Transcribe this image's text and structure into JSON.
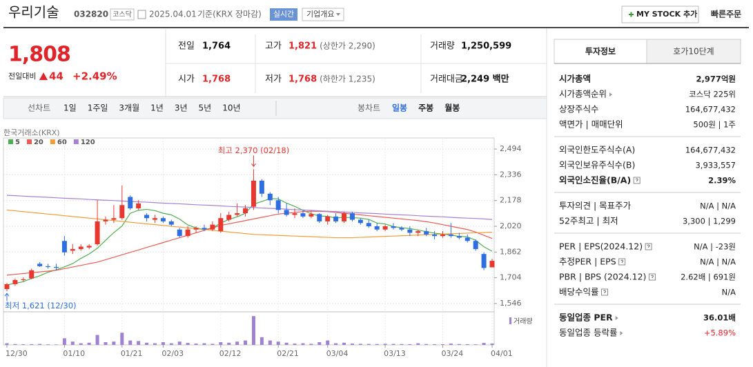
{
  "header": {
    "name": "우리기술",
    "code": "032820",
    "market": "코스닥",
    "date": "2025.04.01",
    "basis": "기준(KRX 장마감)",
    "realtime": "실시간",
    "overview": "기업개요",
    "my_stock": "MY STOCK 추가",
    "quick_order": "빠른주문"
  },
  "quote": {
    "price": "1,808",
    "change_label": "전일대비",
    "change": "44",
    "change_rate": "+2.49%",
    "color": "#e0242a",
    "items": [
      {
        "label": "전일",
        "value": "1,764",
        "color": "#111111"
      },
      {
        "label": "고가",
        "value": "1,821",
        "note": "(상한가 2,290)",
        "color": "#e0242a"
      },
      {
        "label": "거래량",
        "value": "1,250,599",
        "color": "#111111"
      },
      {
        "label": "시가",
        "value": "1,768",
        "color": "#e0242a"
      },
      {
        "label": "저가",
        "value": "1,768",
        "note": "(하한가 1,235)",
        "color": "#e0242a"
      },
      {
        "label": "거래대금",
        "value": "2,249 백만",
        "color": "#111111"
      }
    ]
  },
  "periods": {
    "line_label": "선차트",
    "line": [
      "1일",
      "1주일",
      "3개월",
      "1년",
      "3년",
      "5년",
      "10년"
    ],
    "candle_label": "봉차트",
    "candle": [
      "일봉",
      "주봉",
      "월봉"
    ],
    "selected": 0
  },
  "chart_data": {
    "type": "candlestick",
    "source": "한국거래소(KRX)",
    "up_color": "#e8372f",
    "down_color": "#2f6ee0",
    "categories": [
      "12/30",
      null,
      null,
      null,
      null,
      null,
      null,
      "01/10",
      null,
      null,
      null,
      null,
      null,
      null,
      "01/21",
      null,
      null,
      null,
      null,
      "02/03",
      null,
      null,
      null,
      null,
      null,
      null,
      "02/12",
      null,
      null,
      null,
      null,
      null,
      null,
      "02/21",
      null,
      null,
      null,
      null,
      null,
      "03/04",
      null,
      null,
      null,
      null,
      null,
      null,
      "03/13",
      null,
      null,
      null,
      null,
      null,
      null,
      "03/24",
      null,
      null,
      null,
      null,
      null,
      "04/01"
    ],
    "open": [
      1635,
      1665,
      1690,
      1700,
      1790,
      1775,
      1770,
      1930,
      1870,
      1880,
      1890,
      1910,
      2050,
      2060,
      2070,
      2200,
      2130,
      2090,
      2060,
      2070,
      2050,
      2000,
      1960,
      2000,
      2010,
      2000,
      1990,
      2060,
      2090,
      2100,
      2140,
      2300,
      2220,
      2180,
      2120,
      2090,
      2100,
      2080,
      2095,
      2050,
      2080,
      2050,
      2100,
      2060,
      2040,
      2020,
      2000,
      2020,
      2010,
      2000,
      1980,
      1990,
      1970,
      1960,
      1970,
      1960,
      1950,
      1930,
      1850,
      1768
    ],
    "high": [
      1672,
      1700,
      1705,
      1760,
      1800,
      1790,
      1790,
      1960,
      1910,
      1910,
      1910,
      2180,
      2080,
      2150,
      2270,
      2210,
      2180,
      2100,
      2090,
      2080,
      2060,
      2010,
      2020,
      2020,
      2030,
      2050,
      2100,
      2110,
      2160,
      2150,
      2370,
      2310,
      2230,
      2200,
      2160,
      2130,
      2120,
      2110,
      2100,
      2090,
      2100,
      2110,
      2110,
      2070,
      2060,
      2040,
      2030,
      2040,
      2020,
      2020,
      2000,
      2010,
      1990,
      1990,
      2040,
      1980,
      1970,
      1940,
      1860,
      1821
    ],
    "low": [
      1621,
      1655,
      1680,
      1695,
      1770,
      1760,
      1750,
      1840,
      1850,
      1870,
      1880,
      1900,
      2030,
      2040,
      2060,
      2120,
      2120,
      2050,
      2040,
      2040,
      2020,
      1950,
      1950,
      1980,
      1990,
      1990,
      1980,
      2050,
      2080,
      2080,
      2120,
      2200,
      2150,
      2100,
      2080,
      2070,
      2070,
      2070,
      2040,
      2030,
      2040,
      2040,
      2050,
      2030,
      2010,
      1990,
      1990,
      2000,
      1990,
      1960,
      1960,
      1960,
      1940,
      1950,
      1950,
      1940,
      1920,
      1870,
      1750,
      1768
    ],
    "close": [
      1665,
      1690,
      1695,
      1750,
      1775,
      1770,
      1765,
      1860,
      1880,
      1895,
      1900,
      2050,
      2060,
      2070,
      2150,
      2130,
      2160,
      2070,
      2070,
      2050,
      2030,
      1960,
      2000,
      2010,
      2000,
      2030,
      2070,
      2090,
      2100,
      2130,
      2300,
      2220,
      2180,
      2120,
      2090,
      2100,
      2080,
      2095,
      2050,
      2080,
      2050,
      2100,
      2060,
      2040,
      2020,
      2000,
      2020,
      2010,
      2000,
      1980,
      1990,
      1970,
      1960,
      1970,
      1960,
      1950,
      1930,
      1880,
      1764,
      1808
    ],
    "ylim": [
      1512,
      2562
    ],
    "yticks": [
      {
        "value": 2494,
        "label": "2,494"
      },
      {
        "value": 2336,
        "label": "2,336"
      },
      {
        "value": 2178,
        "label": "2,178"
      },
      {
        "value": 2020,
        "label": "2,020"
      },
      {
        "value": 1862,
        "label": "1,862"
      },
      {
        "value": 1704,
        "label": "1,704"
      },
      {
        "value": 1546,
        "label": "1,546"
      }
    ],
    "ma": [
      {
        "name": "5",
        "color": "#4caf50",
        "values": [
          1660,
          1670,
          1680,
          1700,
          1716,
          1738,
          1753,
          1771,
          1791,
          1823,
          1850,
          1885,
          1934,
          1981,
          2022,
          2100,
          2118,
          2124,
          2116,
          2100,
          2090,
          2064,
          2028,
          2010,
          2000,
          2009,
          2040,
          2062,
          2078,
          2100,
          2156,
          2172,
          2190,
          2188,
          2162,
          2142,
          2118,
          2097,
          2083,
          2081,
          2071,
          2075,
          2073,
          2070,
          2062,
          2040,
          2034,
          2018,
          2011,
          2006,
          1997,
          1987,
          1978,
          1972,
          1966,
          1958,
          1955,
          1934,
          1894,
          1867
        ]
      },
      {
        "name": "20",
        "color": "#ec5a52",
        "values": [
          1720,
          1725,
          1730,
          1735,
          1740,
          1745,
          1750,
          1760,
          1770,
          1780,
          1790,
          1800,
          1815,
          1830,
          1845,
          1860,
          1875,
          1890,
          1905,
          1920,
          1935,
          1950,
          1965,
          1980,
          1995,
          2010,
          2025,
          2035,
          2045,
          2055,
          2065,
          2075,
          2085,
          2095,
          2100,
          2105,
          2110,
          2112,
          2112,
          2110,
          2105,
          2100,
          2095,
          2090,
          2085,
          2080,
          2075,
          2070,
          2065,
          2060,
          2055,
          2048,
          2040,
          2030,
          2020,
          2010,
          2000,
          1985,
          1965,
          1945
        ]
      },
      {
        "name": "60",
        "color": "#f39c3a",
        "values": [
          2120,
          2115,
          2110,
          2105,
          2100,
          2095,
          2090,
          2085,
          2080,
          2075,
          2070,
          2065,
          2060,
          2055,
          2050,
          2045,
          2040,
          2035,
          2030,
          2025,
          2020,
          2015,
          2010,
          2005,
          2000,
          1995,
          1990,
          1985,
          1980,
          1975,
          1970,
          1968,
          1966,
          1964,
          1962,
          1960,
          1958,
          1956,
          1954,
          1952,
          1950,
          1950,
          1950,
          1952,
          1954,
          1956,
          1958,
          1960,
          1962,
          1964,
          1966,
          1968,
          1970,
          1972,
          1974,
          1976,
          1978,
          1980,
          1982,
          1984
        ]
      },
      {
        "name": "120",
        "color": "#a77fd6",
        "values": [
          2210,
          2208,
          2205,
          2202,
          2200,
          2198,
          2195,
          2192,
          2190,
          2188,
          2185,
          2182,
          2180,
          2178,
          2175,
          2172,
          2170,
          2168,
          2165,
          2162,
          2160,
          2158,
          2155,
          2152,
          2150,
          2148,
          2145,
          2142,
          2140,
          2138,
          2135,
          2132,
          2130,
          2128,
          2125,
          2122,
          2120,
          2118,
          2115,
          2112,
          2110,
          2108,
          2105,
          2102,
          2100,
          2098,
          2095,
          2092,
          2090,
          2088,
          2085,
          2082,
          2080,
          2078,
          2075,
          2072,
          2070,
          2068,
          2065,
          2062
        ]
      }
    ],
    "volume": {
      "label": "거래량",
      "color": "#9f82d1",
      "ylim": [
        0,
        28000000
      ],
      "values": [
        1500000,
        800000,
        600000,
        700000,
        900000,
        500000,
        400000,
        6000000,
        3000000,
        1500000,
        2000000,
        9000000,
        2500000,
        3000000,
        11000000,
        4000000,
        3500000,
        2000000,
        1500000,
        2500000,
        1500000,
        3000000,
        1800000,
        1200000,
        1500000,
        1000000,
        2500000,
        2000000,
        3000000,
        4000000,
        26000000,
        7000000,
        4000000,
        3000000,
        2000000,
        1200000,
        1500000,
        1000000,
        2500000,
        4000000,
        1500000,
        2000000,
        1200000,
        1000000,
        900000,
        800000,
        1000000,
        900000,
        800000,
        700000,
        1500000,
        800000,
        700000,
        600000,
        1200000,
        800000,
        700000,
        500000,
        1800000,
        1250599
      ]
    },
    "high_label": "최고 2,370 (02/18)",
    "low_label": "최저 1,621 (12/30)"
  },
  "side": {
    "tabs": [
      "투자정보",
      "호가10단계"
    ],
    "active": 0,
    "groups": [
      [
        {
          "label": "시가총액",
          "value": "2,977억원",
          "bold": true
        },
        {
          "label": "시가총액순위",
          "value": "코스닥 225위",
          "arrow": true
        },
        {
          "label": "상장주식수",
          "value": "164,677,432"
        },
        {
          "label": "액면가 | 매매단위",
          "value": "500원 | 1주"
        }
      ],
      [
        {
          "label": "외국인한도주식수(A)",
          "value": "164,677,432"
        },
        {
          "label": "외국인보유주식수(B)",
          "value": "3,933,557"
        },
        {
          "label": "외국인소진율(B/A)",
          "value": "2.39%",
          "bold": true,
          "help": true
        }
      ],
      [
        {
          "label": "투자의견 | 목표주가",
          "value": "N/A | N/A"
        },
        {
          "label": "52주최고 | 최저",
          "value": "3,300 | 1,299"
        }
      ],
      [
        {
          "label": "PER | EPS(2024.12)",
          "value": "N/A | -23원",
          "help": true
        },
        {
          "label": "추정PER | EPS",
          "value": "N/A | N/A",
          "help": true
        },
        {
          "label": "PBR | BPS (2024.12)",
          "value": "2.62배 | 691원",
          "help": true
        },
        {
          "label": "배당수익률",
          "value": "N/A",
          "help": true
        }
      ],
      [
        {
          "label": "동일업종 PER",
          "value": "36.01배",
          "bold": true,
          "arrow": true
        },
        {
          "label": "동일업종 등락률",
          "value": "+5.89%",
          "arrow": true,
          "color": "#e0242a"
        }
      ]
    ]
  }
}
